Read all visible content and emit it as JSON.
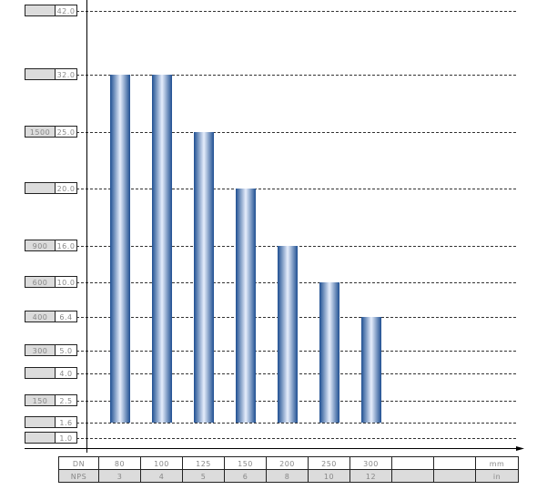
{
  "chart_data": {
    "type": "bar",
    "y_levels": [
      {
        "pn": "42.0",
        "class": ""
      },
      {
        "pn": "32.0",
        "class": ""
      },
      {
        "pn": "25.0",
        "class": "1500"
      },
      {
        "pn": "20.0",
        "class": ""
      },
      {
        "pn": "16.0",
        "class": "900"
      },
      {
        "pn": "10.0",
        "class": "600"
      },
      {
        "pn": "6.4",
        "class": "400"
      },
      {
        "pn": "5.0",
        "class": "300"
      },
      {
        "pn": "4.0",
        "class": ""
      },
      {
        "pn": "2.5",
        "class": "150"
      },
      {
        "pn": "1.6",
        "class": ""
      },
      {
        "pn": "1.0",
        "class": ""
      }
    ],
    "categories": [
      "80",
      "100",
      "125",
      "150",
      "200",
      "250",
      "300"
    ],
    "values": [
      32.0,
      32.0,
      25.0,
      20.0,
      16.0,
      10.0,
      6.4
    ],
    "bar_base": 1.6,
    "grid": "dashed",
    "bar_colors": {
      "edge": "#1f4f91",
      "center": "#e6eefc"
    },
    "table": {
      "row1_label": "DN",
      "row1": [
        "80",
        "100",
        "125",
        "150",
        "200",
        "250",
        "300",
        "",
        ""
      ],
      "row1_unit": "mm",
      "row2_label": "NPS",
      "row2": [
        "3",
        "4",
        "5",
        "6",
        "8",
        "10",
        "12",
        "",
        ""
      ],
      "row2_unit": "in"
    }
  }
}
